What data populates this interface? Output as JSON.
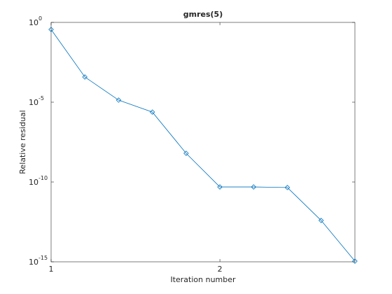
{
  "chart_data": {
    "type": "line",
    "title": "gmres(5)",
    "x_label": "Iteration number",
    "y_label": "Relative residual",
    "x": [
      1,
      1.2,
      1.4,
      1.6,
      1.8,
      2,
      2.2,
      2.4,
      2.6,
      2.8
    ],
    "series": [
      {
        "color": "#0072bd",
        "marker": "diamond",
        "values": [
          0.36,
          0.00038,
          1.35e-05,
          2.4e-06,
          6.3e-09,
          4.9e-11,
          4.9e-11,
          4.5e-11,
          3.9e-13,
          1.1e-15
        ]
      }
    ],
    "xlim": [
      1,
      2.8
    ],
    "xticks": [
      1,
      2
    ],
    "ylim": [
      1e-15,
      1
    ],
    "y_scale": "log",
    "yticks": [
      {
        "value": 1,
        "label": "10",
        "exponent": "0"
      },
      {
        "value": 1e-05,
        "label": "10",
        "exponent": "-5"
      },
      {
        "value": 1e-10,
        "label": "10",
        "exponent": "-10"
      },
      {
        "value": 1e-15,
        "label": "10",
        "exponent": "-15"
      }
    ],
    "grid": false
  }
}
